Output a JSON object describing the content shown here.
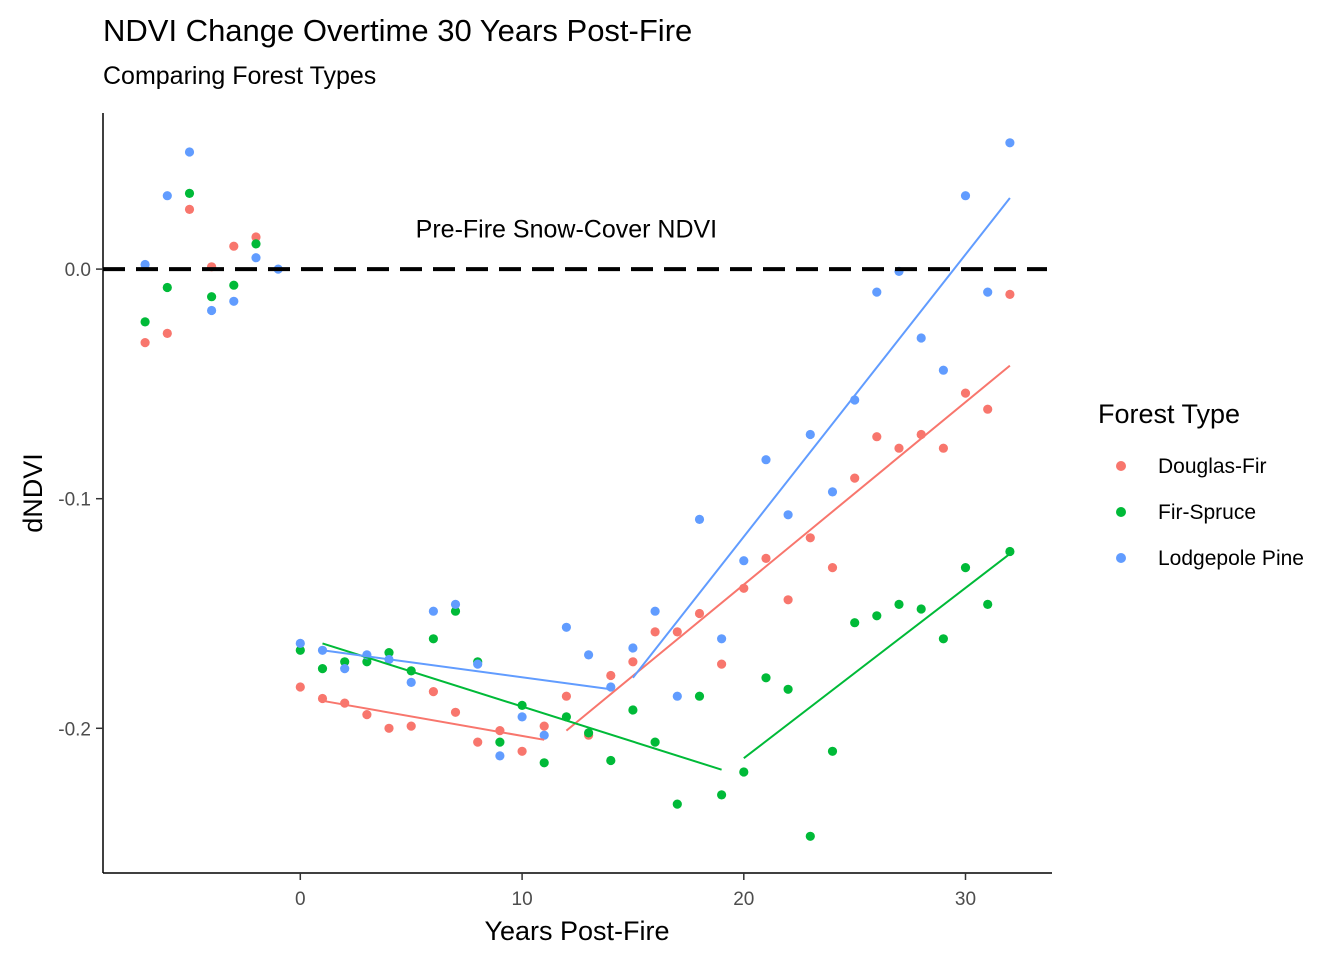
{
  "chart_data": {
    "type": "scatter",
    "title": "NDVI Change Overtime 30 Years Post-Fire",
    "subtitle": "Comparing Forest Types",
    "xlabel": "Years Post-Fire",
    "ylabel": "dNDVI",
    "xlim": [
      -8.9,
      33.9
    ],
    "ylim": [
      -0.263,
      0.068
    ],
    "x_ticks": [
      0,
      10,
      20,
      30
    ],
    "y_ticks": [
      0.0,
      -0.1,
      -0.2
    ],
    "y_tick_labels": [
      "0.0",
      "-0.1",
      "-0.2"
    ],
    "grid": false,
    "legend": {
      "title": "Forest Type",
      "position": "right"
    },
    "reference_line": {
      "y": 0.0,
      "style": "dashed",
      "color": "#000000",
      "label": "Pre-Fire Snow-Cover NDVI",
      "label_x": 12,
      "label_y": 0.0138
    },
    "series": [
      {
        "name": "Douglas-Fir",
        "color": "#F8766D",
        "points": [
          [
            -7,
            -0.032
          ],
          [
            -6,
            -0.028
          ],
          [
            -5,
            0.026
          ],
          [
            -4,
            0.001
          ],
          [
            -3,
            0.01
          ],
          [
            -2,
            0.014
          ],
          [
            0,
            -0.182
          ],
          [
            1,
            -0.187
          ],
          [
            2,
            -0.189
          ],
          [
            3,
            -0.194
          ],
          [
            4,
            -0.2
          ],
          [
            5,
            -0.199
          ],
          [
            6,
            -0.184
          ],
          [
            7,
            -0.193
          ],
          [
            8,
            -0.206
          ],
          [
            9,
            -0.201
          ],
          [
            10,
            -0.21
          ],
          [
            11,
            -0.199
          ],
          [
            12,
            -0.186
          ],
          [
            13,
            -0.203
          ],
          [
            14,
            -0.177
          ],
          [
            15,
            -0.171
          ],
          [
            16,
            -0.158
          ],
          [
            17,
            -0.158
          ],
          [
            18,
            -0.15
          ],
          [
            19,
            -0.172
          ],
          [
            20,
            -0.139
          ],
          [
            21,
            -0.126
          ],
          [
            22,
            -0.144
          ],
          [
            23,
            -0.117
          ],
          [
            24,
            -0.13
          ],
          [
            25,
            -0.091
          ],
          [
            26,
            -0.073
          ],
          [
            27,
            -0.078
          ],
          [
            28,
            -0.072
          ],
          [
            29,
            -0.078
          ],
          [
            30,
            -0.054
          ],
          [
            31,
            -0.061
          ],
          [
            32,
            -0.011
          ]
        ],
        "trend": [
          [
            [
              1,
              -0.188
            ],
            [
              11,
              -0.205
            ]
          ],
          [
            [
              12,
              -0.201
            ],
            [
              32,
              -0.042
            ]
          ]
        ]
      },
      {
        "name": "Fir-Spruce",
        "color": "#00BA38",
        "points": [
          [
            -7,
            -0.023
          ],
          [
            -6,
            -0.008
          ],
          [
            -5,
            0.033
          ],
          [
            -4,
            -0.012
          ],
          [
            -3,
            -0.007
          ],
          [
            -2,
            0.011
          ],
          [
            0,
            -0.166
          ],
          [
            1,
            -0.174
          ],
          [
            2,
            -0.171
          ],
          [
            3,
            -0.171
          ],
          [
            4,
            -0.167
          ],
          [
            5,
            -0.175
          ],
          [
            6,
            -0.161
          ],
          [
            7,
            -0.149
          ],
          [
            8,
            -0.171
          ],
          [
            9,
            -0.206
          ],
          [
            10,
            -0.19
          ],
          [
            11,
            -0.215
          ],
          [
            12,
            -0.195
          ],
          [
            13,
            -0.202
          ],
          [
            14,
            -0.214
          ],
          [
            15,
            -0.192
          ],
          [
            16,
            -0.206
          ],
          [
            17,
            -0.233
          ],
          [
            18,
            -0.186
          ],
          [
            19,
            -0.229
          ],
          [
            20,
            -0.219
          ],
          [
            21,
            -0.178
          ],
          [
            22,
            -0.183
          ],
          [
            23,
            -0.247
          ],
          [
            24,
            -0.21
          ],
          [
            25,
            -0.154
          ],
          [
            26,
            -0.151
          ],
          [
            27,
            -0.146
          ],
          [
            28,
            -0.148
          ],
          [
            29,
            -0.161
          ],
          [
            30,
            -0.13
          ],
          [
            31,
            -0.146
          ],
          [
            32,
            -0.123
          ]
        ],
        "trend": [
          [
            [
              1,
              -0.163
            ],
            [
              19,
              -0.218
            ]
          ],
          [
            [
              20,
              -0.213
            ],
            [
              32,
              -0.124
            ]
          ]
        ]
      },
      {
        "name": "Lodgepole Pine",
        "color": "#619CFF",
        "points": [
          [
            -7,
            0.002
          ],
          [
            -6,
            0.032
          ],
          [
            -5,
            0.051
          ],
          [
            -4,
            -0.018
          ],
          [
            -3,
            -0.014
          ],
          [
            -2,
            0.005
          ],
          [
            -1,
            0.0
          ],
          [
            0,
            -0.163
          ],
          [
            1,
            -0.166
          ],
          [
            2,
            -0.174
          ],
          [
            3,
            -0.168
          ],
          [
            4,
            -0.17
          ],
          [
            5,
            -0.18
          ],
          [
            6,
            -0.149
          ],
          [
            7,
            -0.146
          ],
          [
            8,
            -0.172
          ],
          [
            9,
            -0.212
          ],
          [
            10,
            -0.195
          ],
          [
            11,
            -0.203
          ],
          [
            12,
            -0.156
          ],
          [
            13,
            -0.168
          ],
          [
            14,
            -0.182
          ],
          [
            15,
            -0.165
          ],
          [
            16,
            -0.149
          ],
          [
            17,
            -0.186
          ],
          [
            18,
            -0.109
          ],
          [
            19,
            -0.161
          ],
          [
            20,
            -0.127
          ],
          [
            21,
            -0.083
          ],
          [
            22,
            -0.107
          ],
          [
            23,
            -0.072
          ],
          [
            24,
            -0.097
          ],
          [
            25,
            -0.057
          ],
          [
            26,
            -0.01
          ],
          [
            27,
            -0.001
          ],
          [
            28,
            -0.03
          ],
          [
            29,
            -0.044
          ],
          [
            30,
            0.032
          ],
          [
            31,
            -0.01
          ],
          [
            32,
            0.055
          ]
        ],
        "trend": [
          [
            [
              1,
              -0.166
            ],
            [
              14,
              -0.183
            ]
          ],
          [
            [
              15,
              -0.178
            ],
            [
              32,
              0.031
            ]
          ]
        ]
      }
    ]
  }
}
